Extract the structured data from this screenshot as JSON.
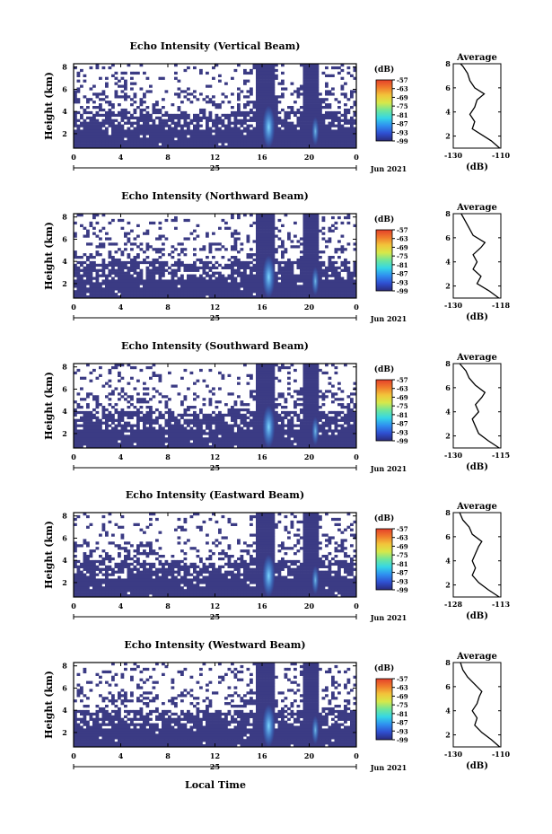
{
  "figure": {
    "x_caption": "Local Time",
    "date_prefix": "25",
    "date_label": "Jun 2021"
  },
  "chart_data": [
    {
      "type": "heatmap",
      "title": "Echo Intensity (Vertical Beam)",
      "ylabel": "Height (km)",
      "x_ticks": [
        "0",
        "4",
        "8",
        "12",
        "16",
        "20",
        "0"
      ],
      "xlim": [
        0,
        24
      ],
      "y_ticks": [
        "2",
        "4",
        "6",
        "8"
      ],
      "ylim": [
        0.7,
        8.3
      ],
      "colorbar_unit": "(dB)",
      "colorbar_ticks": [
        "-57",
        "-63",
        "-69",
        "-75",
        "-81",
        "-87",
        "-93",
        "-99"
      ],
      "colorbar_range": [
        -99,
        -57
      ],
      "profile": {
        "title": "Average",
        "xlabel": "(dB)",
        "x_ticks": [
          "-130",
          "-110"
        ],
        "xlim": [
          -130,
          -110
        ],
        "y_ticks": [
          "2",
          "4",
          "6",
          "8"
        ],
        "ylim": [
          1,
          8
        ],
        "points": [
          [
            -110.5,
            1.0
          ],
          [
            -114,
            1.6
          ],
          [
            -118,
            2.1
          ],
          [
            -122,
            2.6
          ],
          [
            -121,
            3.2
          ],
          [
            -123,
            3.8
          ],
          [
            -121,
            4.4
          ],
          [
            -120,
            5.0
          ],
          [
            -117,
            5.5
          ],
          [
            -121,
            6.0
          ],
          [
            -123,
            6.6
          ],
          [
            -124,
            7.2
          ],
          [
            -126,
            7.8
          ],
          [
            -127,
            8.0
          ]
        ]
      }
    },
    {
      "type": "heatmap",
      "title": "Echo Intensity (Northward Beam)",
      "ylabel": "Height (km)",
      "x_ticks": [
        "0",
        "4",
        "8",
        "12",
        "16",
        "20",
        "0"
      ],
      "xlim": [
        0,
        24
      ],
      "y_ticks": [
        "2",
        "4",
        "6",
        "8"
      ],
      "ylim": [
        0.7,
        8.3
      ],
      "colorbar_unit": "(dB)",
      "colorbar_ticks": [
        "-57",
        "-63",
        "-69",
        "-75",
        "-81",
        "-87",
        "-93",
        "-99"
      ],
      "colorbar_range": [
        -99,
        -57
      ],
      "profile": {
        "title": "Average",
        "xlabel": "(dB)",
        "x_ticks": [
          "-130",
          "-118"
        ],
        "xlim": [
          -130,
          -118
        ],
        "y_ticks": [
          "2",
          "4",
          "6",
          "8"
        ],
        "ylim": [
          1,
          8
        ],
        "points": [
          [
            -118.5,
            1.0
          ],
          [
            -121,
            1.6
          ],
          [
            -124,
            2.2
          ],
          [
            -123,
            2.8
          ],
          [
            -125,
            3.4
          ],
          [
            -124,
            4.0
          ],
          [
            -125,
            4.6
          ],
          [
            -123,
            5.2
          ],
          [
            -122,
            5.6
          ],
          [
            -125,
            6.2
          ],
          [
            -126,
            6.8
          ],
          [
            -127,
            7.4
          ],
          [
            -128,
            8.0
          ]
        ]
      }
    },
    {
      "type": "heatmap",
      "title": "Echo Intensity (Southward Beam)",
      "ylabel": "Height (km)",
      "x_ticks": [
        "0",
        "4",
        "8",
        "12",
        "16",
        "20",
        "0"
      ],
      "xlim": [
        0,
        24
      ],
      "y_ticks": [
        "2",
        "4",
        "6",
        "8"
      ],
      "ylim": [
        0.7,
        8.3
      ],
      "colorbar_unit": "(dB)",
      "colorbar_ticks": [
        "-57",
        "-63",
        "-69",
        "-75",
        "-81",
        "-87",
        "-93",
        "-99"
      ],
      "colorbar_range": [
        -99,
        -57
      ],
      "profile": {
        "title": "Average",
        "xlabel": "(dB)",
        "x_ticks": [
          "-130",
          "-115"
        ],
        "xlim": [
          -130,
          -115
        ],
        "y_ticks": [
          "2",
          "4",
          "6",
          "8"
        ],
        "ylim": [
          1,
          8
        ],
        "points": [
          [
            -115.5,
            1.0
          ],
          [
            -119,
            1.6
          ],
          [
            -122,
            2.2
          ],
          [
            -123,
            2.8
          ],
          [
            -124,
            3.4
          ],
          [
            -122,
            4.0
          ],
          [
            -123,
            4.6
          ],
          [
            -121,
            5.2
          ],
          [
            -120,
            5.6
          ],
          [
            -123,
            6.2
          ],
          [
            -125,
            6.8
          ],
          [
            -126,
            7.4
          ],
          [
            -128,
            8.0
          ]
        ]
      }
    },
    {
      "type": "heatmap",
      "title": "Echo Intensity (Eastward Beam)",
      "ylabel": "Height (km)",
      "x_ticks": [
        "0",
        "4",
        "8",
        "12",
        "16",
        "20",
        "0"
      ],
      "xlim": [
        0,
        24
      ],
      "y_ticks": [
        "2",
        "4",
        "6",
        "8"
      ],
      "ylim": [
        0.7,
        8.3
      ],
      "colorbar_unit": "(dB)",
      "colorbar_ticks": [
        "-57",
        "-63",
        "-69",
        "-75",
        "-81",
        "-87",
        "-93",
        "-99"
      ],
      "colorbar_range": [
        -99,
        -57
      ],
      "profile": {
        "title": "Average",
        "xlabel": "(dB)",
        "x_ticks": [
          "-128",
          "-113"
        ],
        "xlim": [
          -128,
          -113
        ],
        "y_ticks": [
          "2",
          "4",
          "6",
          "8"
        ],
        "ylim": [
          1,
          8
        ],
        "points": [
          [
            -113.5,
            1.0
          ],
          [
            -117,
            1.6
          ],
          [
            -120,
            2.2
          ],
          [
            -122,
            2.8
          ],
          [
            -121,
            3.4
          ],
          [
            -122,
            4.0
          ],
          [
            -121,
            4.6
          ],
          [
            -120,
            5.2
          ],
          [
            -119,
            5.6
          ],
          [
            -122,
            6.2
          ],
          [
            -123,
            6.8
          ],
          [
            -125,
            7.4
          ],
          [
            -126,
            8.0
          ]
        ]
      }
    },
    {
      "type": "heatmap",
      "title": "Echo Intensity (Westward Beam)",
      "ylabel": "Height (km)",
      "x_ticks": [
        "0",
        "4",
        "8",
        "12",
        "16",
        "20",
        "0"
      ],
      "xlim": [
        0,
        24
      ],
      "y_ticks": [
        "2",
        "4",
        "6",
        "8"
      ],
      "ylim": [
        0.7,
        8.3
      ],
      "colorbar_unit": "(dB)",
      "colorbar_ticks": [
        "-57",
        "-63",
        "-69",
        "-75",
        "-81",
        "-87",
        "-93",
        "-99"
      ],
      "colorbar_range": [
        -99,
        -57
      ],
      "profile": {
        "title": "Average",
        "xlabel": "(dB)",
        "x_ticks": [
          "-130",
          "-110"
        ],
        "xlim": [
          -130,
          -110
        ],
        "y_ticks": [
          "2",
          "4",
          "6",
          "8"
        ],
        "ylim": [
          1,
          8
        ],
        "points": [
          [
            -110.5,
            1.0
          ],
          [
            -114,
            1.6
          ],
          [
            -118,
            2.2
          ],
          [
            -121,
            2.8
          ],
          [
            -120,
            3.4
          ],
          [
            -122,
            4.0
          ],
          [
            -120,
            4.6
          ],
          [
            -119,
            5.2
          ],
          [
            -118,
            5.6
          ],
          [
            -121,
            6.2
          ],
          [
            -124,
            6.8
          ],
          [
            -126,
            7.4
          ],
          [
            -127,
            8.0
          ]
        ]
      }
    }
  ],
  "colors": {
    "echo_fill": "#3b3b84",
    "background": "#ffffff",
    "axis": "#000000",
    "colorbar_stops": [
      "#2a2a7a",
      "#2f4fd0",
      "#2f8ff0",
      "#35d6e6",
      "#6fe69a",
      "#d6e84a",
      "#f2c43a",
      "#f07c2c",
      "#e4402a"
    ],
    "bright_echo": [
      "#7fd8ff",
      "#1e90ff"
    ]
  }
}
